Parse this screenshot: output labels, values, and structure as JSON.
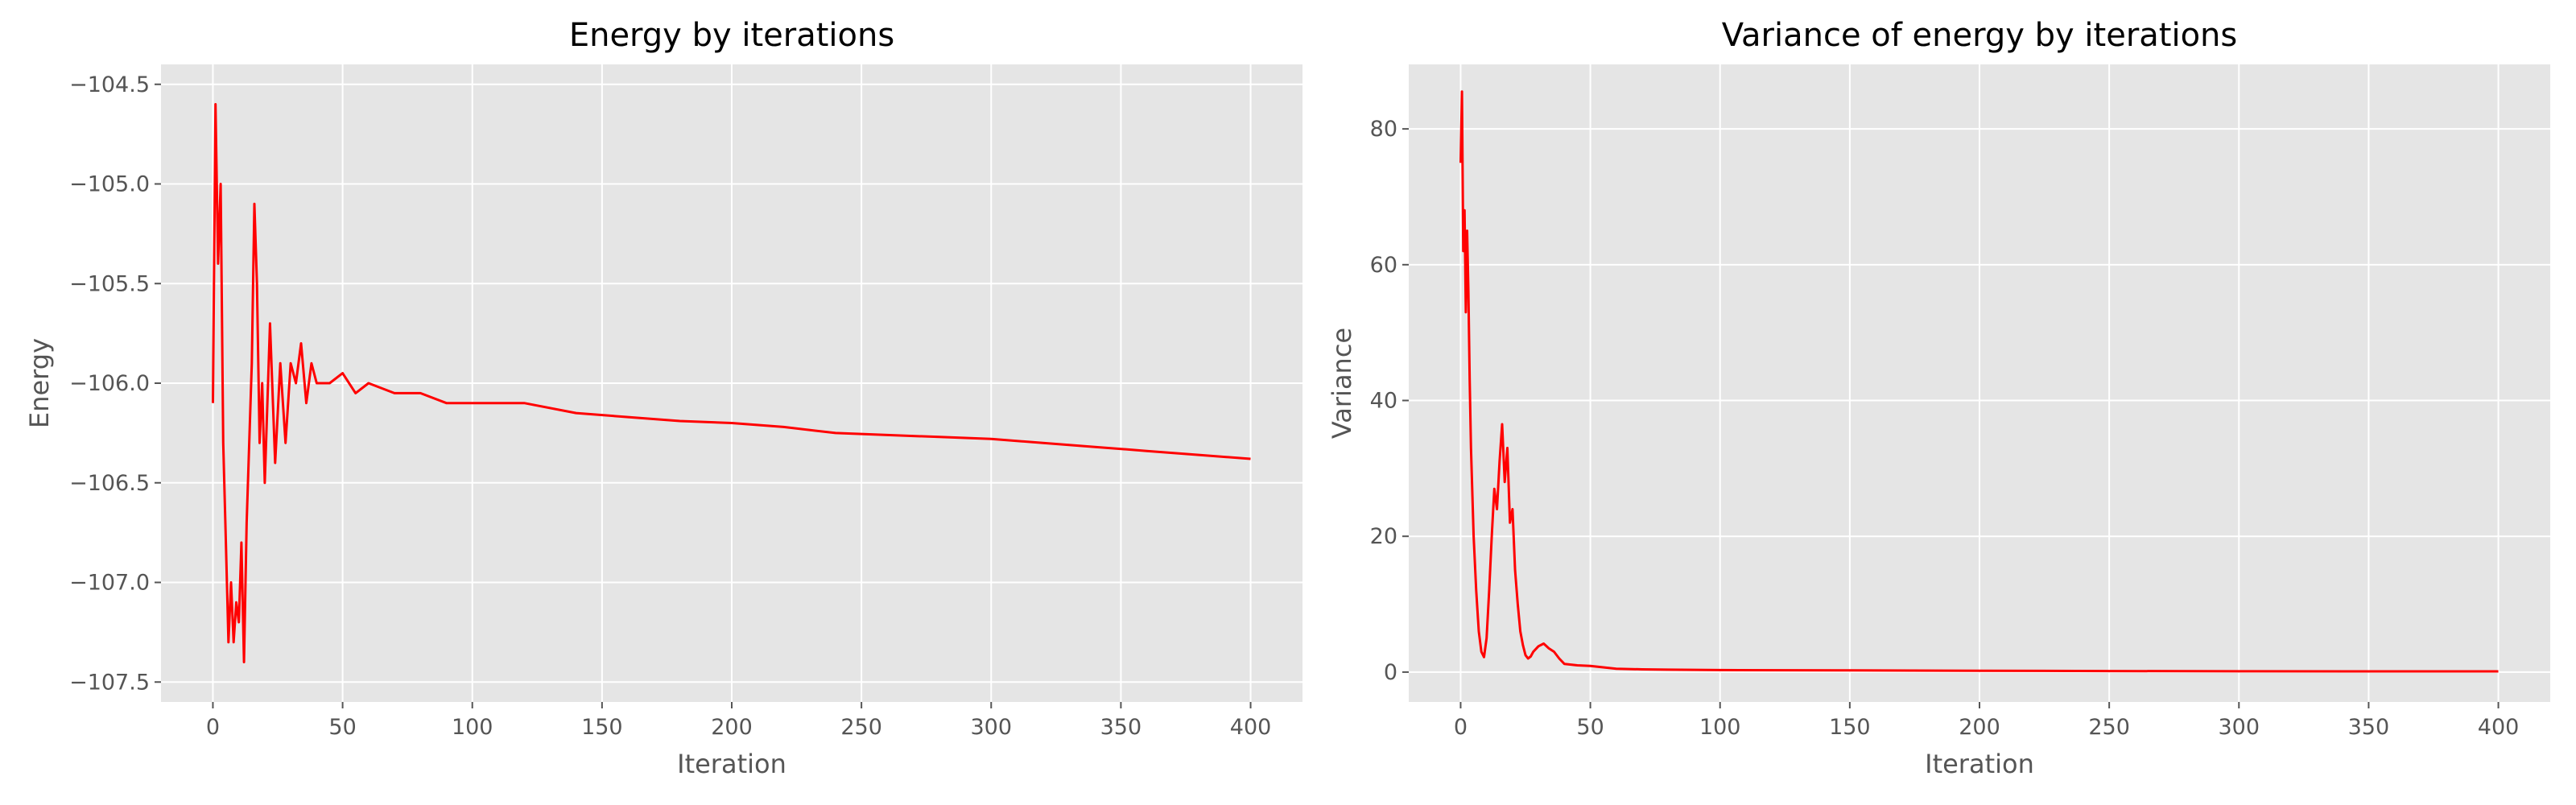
{
  "chart_data": [
    {
      "type": "line",
      "title": "Energy by iterations",
      "xlabel": "Iteration",
      "ylabel": "Energy",
      "xlim": [
        -20,
        420
      ],
      "ylim": [
        -107.6,
        -104.4
      ],
      "xticks": [
        0,
        50,
        100,
        150,
        200,
        250,
        300,
        350,
        400
      ],
      "xtick_labels": [
        "0",
        "50",
        "100",
        "150",
        "200",
        "250",
        "300",
        "350",
        "400"
      ],
      "yticks": [
        -107.5,
        -107.0,
        -106.5,
        -106.0,
        -105.5,
        -105.0,
        -104.5
      ],
      "ytick_labels": [
        "−107.5",
        "−107.0",
        "−106.5",
        "−106.0",
        "−105.5",
        "−105.0",
        "−104.5"
      ],
      "grid": true,
      "series": [
        {
          "color": "#ff0000",
          "x": [
            0,
            1,
            2,
            3,
            4,
            5,
            6,
            7,
            8,
            9,
            10,
            11,
            12,
            13,
            14,
            15,
            16,
            17,
            18,
            19,
            20,
            22,
            24,
            26,
            28,
            30,
            32,
            34,
            36,
            38,
            40,
            45,
            50,
            55,
            60,
            70,
            80,
            90,
            100,
            120,
            140,
            160,
            180,
            200,
            220,
            240,
            260,
            280,
            300,
            320,
            340,
            360,
            380,
            400
          ],
          "values": [
            -106.1,
            -104.6,
            -105.4,
            -105.0,
            -106.3,
            -106.8,
            -107.3,
            -107.0,
            -107.3,
            -107.1,
            -107.2,
            -106.8,
            -107.4,
            -106.7,
            -106.3,
            -105.9,
            -105.1,
            -105.5,
            -106.3,
            -106.0,
            -106.5,
            -105.7,
            -106.4,
            -105.9,
            -106.3,
            -105.9,
            -106.0,
            -105.8,
            -106.1,
            -105.9,
            -106.0,
            -106.0,
            -105.95,
            -106.05,
            -106.0,
            -106.05,
            -106.05,
            -106.1,
            -106.1,
            -106.1,
            -106.15,
            -106.17,
            -106.19,
            -106.2,
            -106.22,
            -106.25,
            -106.26,
            -106.27,
            -106.28,
            -106.3,
            -106.32,
            -106.34,
            -106.36,
            -106.38
          ]
        }
      ]
    },
    {
      "type": "line",
      "title": "Variance of energy by iterations",
      "xlabel": "Iteration",
      "ylabel": "Variance",
      "xlim": [
        -20,
        420
      ],
      "ylim": [
        -4.4,
        89.5
      ],
      "xticks": [
        0,
        50,
        100,
        150,
        200,
        250,
        300,
        350,
        400
      ],
      "xtick_labels": [
        "0",
        "50",
        "100",
        "150",
        "200",
        "250",
        "300",
        "350",
        "400"
      ],
      "yticks": [
        0,
        20,
        40,
        60,
        80
      ],
      "ytick_labels": [
        "0",
        "20",
        "40",
        "60",
        "80"
      ],
      "grid": true,
      "series": [
        {
          "color": "#ff0000",
          "x": [
            0,
            0.5,
            1,
            1.5,
            2,
            2.5,
            3,
            3.5,
            4,
            5,
            6,
            7,
            8,
            9,
            10,
            11,
            12,
            13,
            14,
            15,
            16,
            17,
            18,
            19,
            20,
            21,
            22,
            23,
            24,
            25,
            26,
            27,
            28,
            30,
            32,
            34,
            36,
            38,
            40,
            45,
            50,
            55,
            60,
            70,
            80,
            100,
            150,
            200,
            250,
            300,
            350,
            400
          ],
          "values": [
            75,
            85.5,
            62,
            68,
            53,
            65,
            56,
            43,
            33,
            20,
            12,
            6,
            3,
            2.2,
            5,
            12,
            20,
            27,
            24,
            31,
            36.5,
            28,
            33,
            22,
            24,
            15,
            10,
            6,
            4,
            2.5,
            2,
            2.3,
            3,
            3.8,
            4.2,
            3.5,
            3,
            2,
            1.2,
            1,
            0.9,
            0.7,
            0.5,
            0.4,
            0.35,
            0.3,
            0.25,
            0.2,
            0.15,
            0.12,
            0.1,
            0.1
          ]
        }
      ]
    }
  ]
}
